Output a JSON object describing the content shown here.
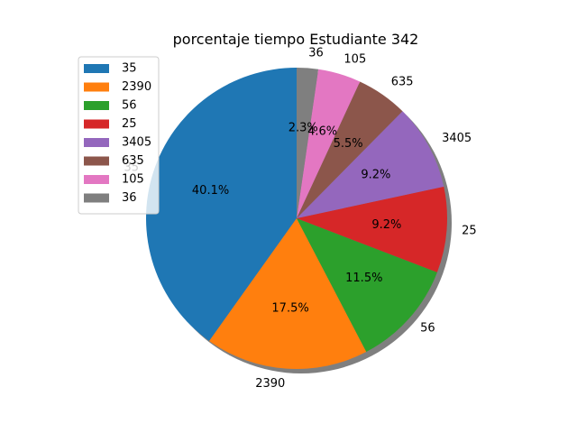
{
  "chart_data": {
    "type": "pie",
    "title": "porcentaje tiempo Estudiante 342",
    "slices": [
      {
        "label": "35",
        "percent": 40.1,
        "pct_label": "40.1%",
        "color": "#1f77b4"
      },
      {
        "label": "2390",
        "percent": 17.5,
        "pct_label": "17.5%",
        "color": "#ff7f0e"
      },
      {
        "label": "56",
        "percent": 11.5,
        "pct_label": "11.5%",
        "color": "#2ca02c"
      },
      {
        "label": "25",
        "percent": 9.2,
        "pct_label": "9.2%",
        "color": "#d62728"
      },
      {
        "label": "3405",
        "percent": 9.2,
        "pct_label": "9.2%",
        "color": "#9467bd"
      },
      {
        "label": "635",
        "percent": 5.5,
        "pct_label": "5.5%",
        "color": "#8c564b"
      },
      {
        "label": "105",
        "percent": 4.6,
        "pct_label": "4.6%",
        "color": "#e377c2"
      },
      {
        "label": "36",
        "percent": 2.3,
        "pct_label": "2.3%",
        "color": "#7f7f7f"
      }
    ],
    "start_angle_deg": 90,
    "direction": "counterclockwise",
    "shadow": true,
    "legend_position": "upper-left"
  }
}
